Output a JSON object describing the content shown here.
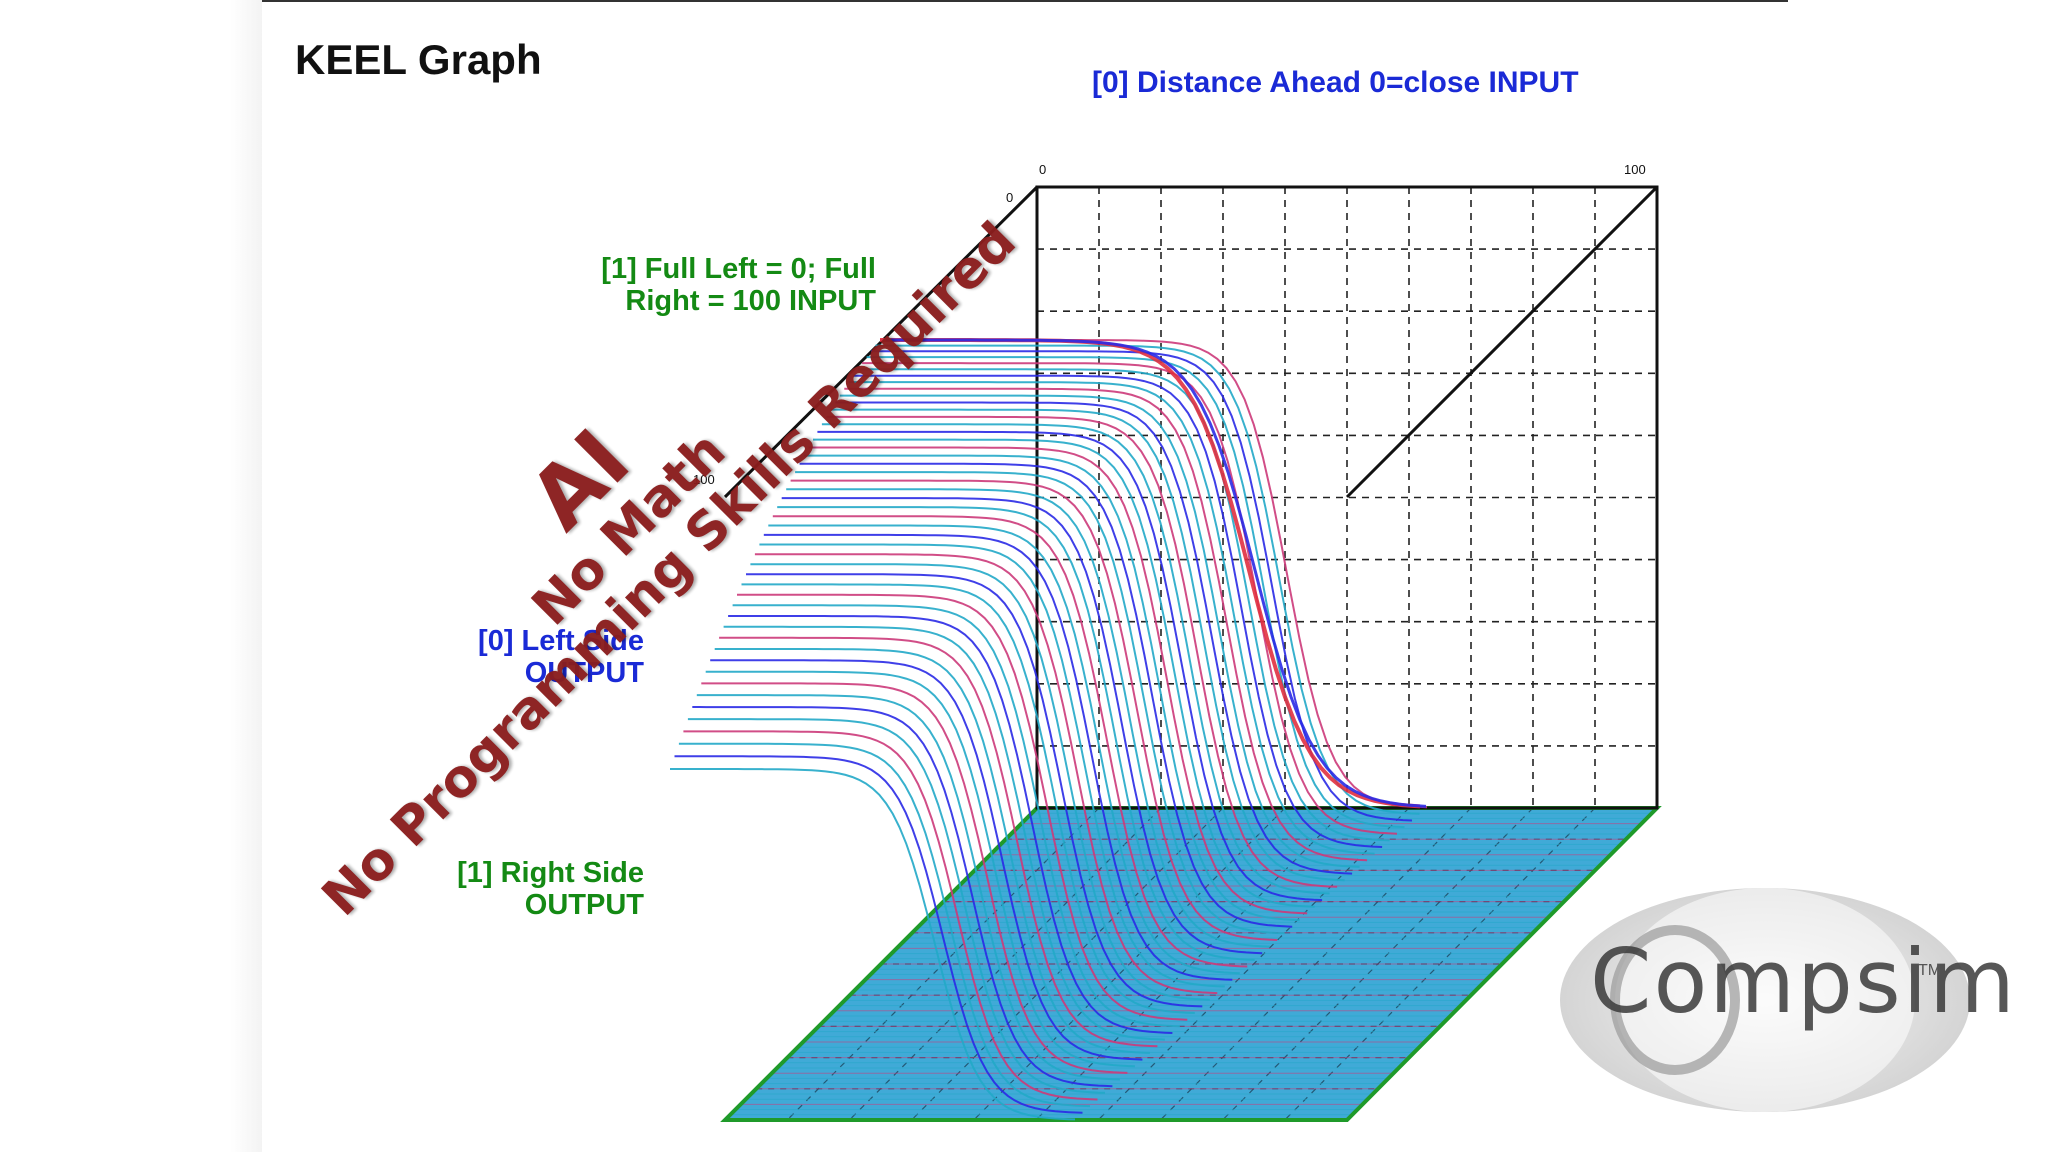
{
  "slide": {
    "title": "KEEL Graph"
  },
  "chart_data": {
    "type": "surface-3d",
    "title": "KEEL Graph",
    "inputs": [
      {
        "label": "[0] Distance Ahead 0=close  INPUT",
        "range": [
          0,
          100
        ],
        "color": "#1a2ad6"
      },
      {
        "label": "[1] Full Left = 0; Full Right = 100 INPUT",
        "range": [
          0,
          100
        ],
        "color": "#148a14"
      }
    ],
    "outputs": [
      {
        "label": "[0] Left Side OUTPUT",
        "color": "#1a2ad6"
      },
      {
        "label": "[1] Right Side OUTPUT",
        "color": "#148a14"
      }
    ],
    "tick_labels": {
      "input0_start": "0",
      "input0_end": "100",
      "input1_start": "0",
      "input1_end": "100"
    },
    "grid": true,
    "colors": {
      "series_cyan": "#22a8c8",
      "series_magenta": "#cc3a7a",
      "series_blue": "#2a2ae6",
      "series_red": "#e03040",
      "floor_fill": "#1e9bd0",
      "floor_edge": "#1f9a2a"
    }
  },
  "watermark": {
    "line1": "AI",
    "line2": "No Math",
    "line3": "No Programming Skills Required",
    "color": "#8a1d1d"
  },
  "logo": {
    "text": "Compsim",
    "tm": "TM"
  }
}
